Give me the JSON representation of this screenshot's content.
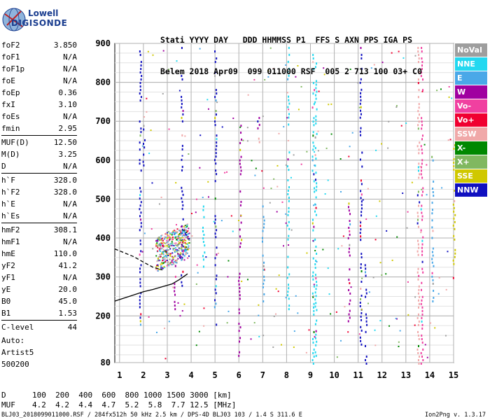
{
  "logo": {
    "line1": "Lowell",
    "line2": "DIGISONDE"
  },
  "header": {
    "line1": "Stati YYYY DAY   DDD HHMMSS P1  FFS S AXN PPS IGA PS",
    "line2": "Belem 2018 Apr09  099 011000 RSF  005 2 713 100 03+ C0"
  },
  "params": [
    {
      "label": "foF2",
      "value": "3.850"
    },
    {
      "label": "foF1",
      "value": "N/A"
    },
    {
      "label": "foF1p",
      "value": "N/A"
    },
    {
      "label": "foE",
      "value": "N/A"
    },
    {
      "label": "foEp",
      "value": "0.36"
    },
    {
      "label": "fxI",
      "value": "3.10"
    },
    {
      "label": "foEs",
      "value": "N/A"
    },
    {
      "label": "fmin",
      "value": "2.95"
    },
    {
      "label": "MUF(D)",
      "value": "12.50"
    },
    {
      "label": "M(D)",
      "value": "3.25"
    },
    {
      "label": "D",
      "value": "N/A"
    },
    {
      "label": "h`F",
      "value": "328.0"
    },
    {
      "label": "h`F2",
      "value": "328.0"
    },
    {
      "label": "h`E",
      "value": "N/A"
    },
    {
      "label": "h`Es",
      "value": "N/A"
    },
    {
      "label": "hmF2",
      "value": "308.1"
    },
    {
      "label": "hmF1",
      "value": "N/A"
    },
    {
      "label": "hmE",
      "value": "110.0"
    },
    {
      "label": "yF2",
      "value": "41.2"
    },
    {
      "label": "yF1",
      "value": "N/A"
    },
    {
      "label": "yE",
      "value": "20.0"
    },
    {
      "label": "B0",
      "value": "45.0"
    },
    {
      "label": "B1",
      "value": "1.53"
    },
    {
      "label": "C-level",
      "value": "44"
    }
  ],
  "auto": {
    "line1": "Auto:",
    "line2": "Artist5",
    "line3": "500200"
  },
  "dmuf": {
    "d_label": "D",
    "d_values": "100  200  400  600  800 1000 1500 3000 [km]",
    "muf_label": "MUF",
    "muf_values": "4.2  4.2  4.4  4.7  5.2  5.8  7.7 12.5 [MHz]"
  },
  "footer": "BLJ03_2018099011000.RSF / 284fx512h 50 kHz 2.5 km / DPS-4D BLJ03 103 / 1.4 S 311.6 E",
  "version": "Ion2Png v. 1.3.17",
  "legend": [
    {
      "label": "NoVal",
      "color": "#9e9e9e"
    },
    {
      "label": "NNE",
      "color": "#22d8f0"
    },
    {
      "label": "E",
      "color": "#4aa8e8"
    },
    {
      "label": "W",
      "color": "#a000a0"
    },
    {
      "label": "Vo-",
      "color": "#f040a0"
    },
    {
      "label": "Vo+",
      "color": "#f00030"
    },
    {
      "label": "SSW",
      "color": "#f0a8a8"
    },
    {
      "label": "X-",
      "color": "#008800"
    },
    {
      "label": "X+",
      "color": "#80b860"
    },
    {
      "label": "SSE",
      "color": "#d0c800"
    },
    {
      "label": "NNW",
      "color": "#1010c0"
    }
  ],
  "chart_data": {
    "type": "scatter",
    "xlabel": "",
    "ylabel": "",
    "xlim": [
      0.8,
      15.0
    ],
    "ylim": [
      80,
      900
    ],
    "x_ticks": [
      1,
      2,
      3,
      4,
      5,
      6,
      7,
      8,
      9,
      10,
      11,
      12,
      13,
      14,
      15
    ],
    "y_ticks": [
      80,
      200,
      300,
      400,
      500,
      600,
      700,
      800,
      900
    ],
    "grid": true,
    "legend_position": "right",
    "traces": [
      {
        "name": "profile",
        "style": "solid",
        "color": "#000000",
        "x": [
          0.8,
          1.5,
          2.0,
          2.4,
          2.8,
          3.2,
          3.5,
          3.85
        ],
        "y": [
          238,
          252,
          262,
          268,
          275,
          282,
          293,
          308
        ]
      },
      {
        "name": "profile-upper",
        "style": "dashed",
        "color": "#000000",
        "x": [
          0.8,
          1.2,
          1.6,
          2.0,
          2.4,
          2.8
        ],
        "y": [
          372,
          362,
          352,
          338,
          325,
          318
        ]
      }
    ],
    "echo_columns": [
      {
        "x": 1.85,
        "y0": 180,
        "y1": 900,
        "color": "#1010c0"
      },
      {
        "x": 2.0,
        "y0": 580,
        "y1": 700,
        "color": "#1010c0"
      },
      {
        "x": 3.6,
        "y0": 280,
        "y1": 900,
        "color": "#1010c0"
      },
      {
        "x": 3.3,
        "y0": 220,
        "y1": 340,
        "color": "#a000a0"
      },
      {
        "x": 4.5,
        "y0": 320,
        "y1": 520,
        "color": "#22d8f0"
      },
      {
        "x": 5.0,
        "y0": 180,
        "y1": 900,
        "color": "#1010c0"
      },
      {
        "x": 6.0,
        "y0": 100,
        "y1": 320,
        "color": "#a000a0"
      },
      {
        "x": 6.05,
        "y0": 380,
        "y1": 700,
        "color": "#a000a0"
      },
      {
        "x": 6.8,
        "y0": 640,
        "y1": 720,
        "color": "#a000a0"
      },
      {
        "x": 7.0,
        "y0": 240,
        "y1": 520,
        "color": "#4aa8e8"
      },
      {
        "x": 8.05,
        "y0": 220,
        "y1": 900,
        "color": "#22d8f0"
      },
      {
        "x": 9.1,
        "y0": 80,
        "y1": 900,
        "color": "#22d8f0"
      },
      {
        "x": 9.2,
        "y0": 100,
        "y1": 860,
        "color": "#22d8f0"
      },
      {
        "x": 10.6,
        "y0": 180,
        "y1": 500,
        "color": "#a000a0"
      },
      {
        "x": 11.3,
        "y0": 80,
        "y1": 360,
        "color": "#1010c0"
      },
      {
        "x": 11.1,
        "y0": 120,
        "y1": 900,
        "color": "#1010c0"
      },
      {
        "x": 13.5,
        "y0": 80,
        "y1": 900,
        "color": "#f0a8a8"
      },
      {
        "x": 13.65,
        "y0": 80,
        "y1": 900,
        "color": "#f040a0"
      },
      {
        "x": 14.1,
        "y0": 240,
        "y1": 620,
        "color": "#4aa8e8"
      },
      {
        "x": 15.0,
        "y0": 300,
        "y1": 650,
        "color": "#d0c800"
      }
    ]
  }
}
